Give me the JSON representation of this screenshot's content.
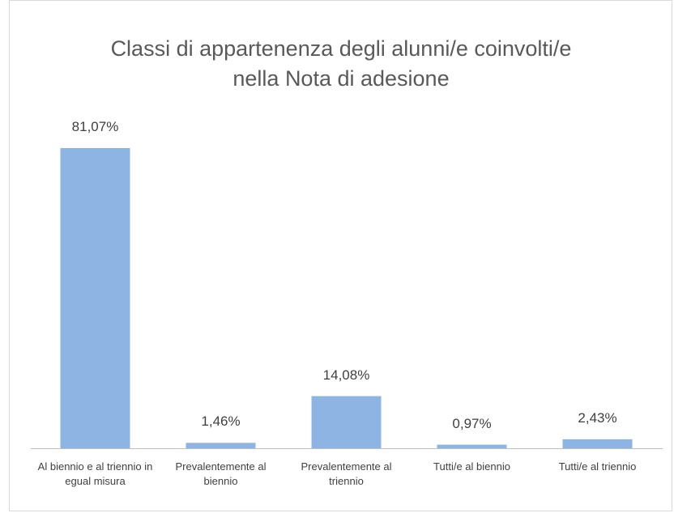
{
  "chart_data": {
    "type": "bar",
    "title": "Classi di appartenenza degli alunni/e coinvolti/e nella Nota di adesione",
    "categories": [
      "Al biennio e al triennio in egual misura",
      "Prevalentemente al biennio",
      "Prevalentemente al triennio",
      "Tutti/e al biennio",
      "Tutti/e al triennio"
    ],
    "values": [
      81.07,
      1.46,
      14.08,
      0.97,
      2.43
    ],
    "value_labels": [
      "81,07%",
      "1,46%",
      "14,08%",
      "0,97%",
      "2,43%"
    ],
    "color": "#8db4e2"
  }
}
